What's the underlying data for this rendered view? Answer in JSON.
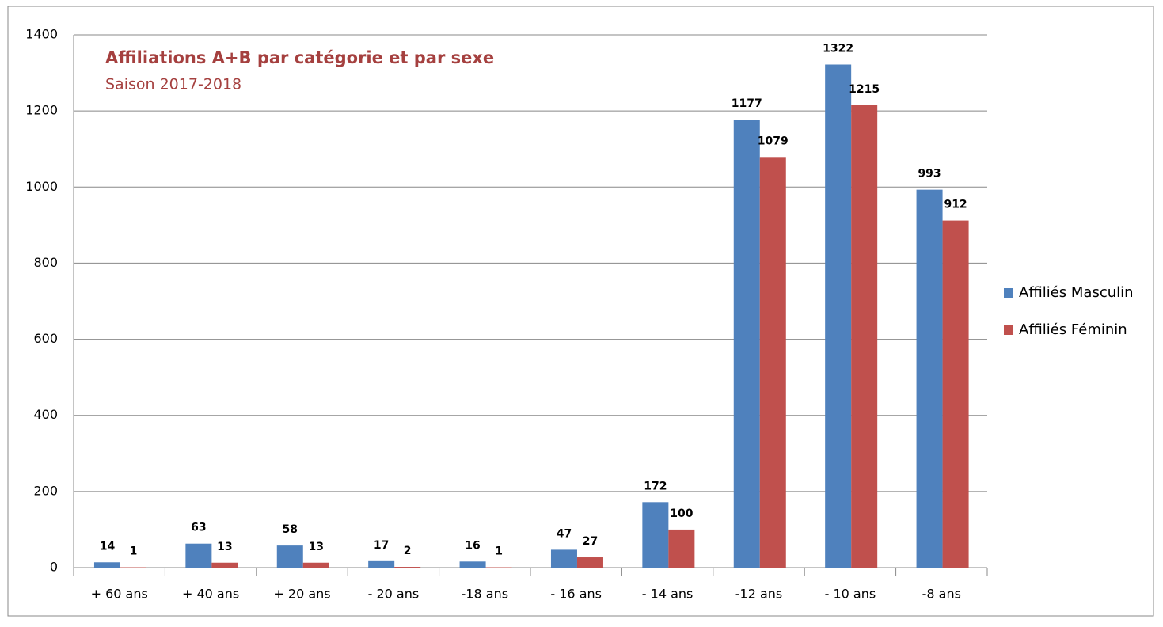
{
  "chart_data": {
    "type": "bar",
    "title": "Affiliations A+B par catégorie et par sexe",
    "subtitle": "Saison 2017-2018",
    "categories": [
      "+ 60 ans",
      "+ 40 ans",
      "+ 20 ans",
      "- 20 ans",
      "-18 ans",
      "- 16 ans",
      "- 14 ans",
      "-12 ans",
      "- 10 ans",
      "-8 ans"
    ],
    "series": [
      {
        "name": "Affiliés Masculin",
        "color": "#4f81bd",
        "values": [
          14,
          63,
          58,
          17,
          16,
          47,
          172,
          1177,
          1322,
          993
        ]
      },
      {
        "name": "Affiliés Féminin",
        "color": "#c0504d",
        "values": [
          1,
          13,
          13,
          2,
          1,
          27,
          100,
          1079,
          1215,
          912
        ]
      }
    ],
    "ylim": [
      0,
      1400
    ],
    "yticks": [
      0,
      200,
      400,
      600,
      800,
      1000,
      1200,
      1400
    ],
    "grid": true,
    "legend": "right"
  }
}
